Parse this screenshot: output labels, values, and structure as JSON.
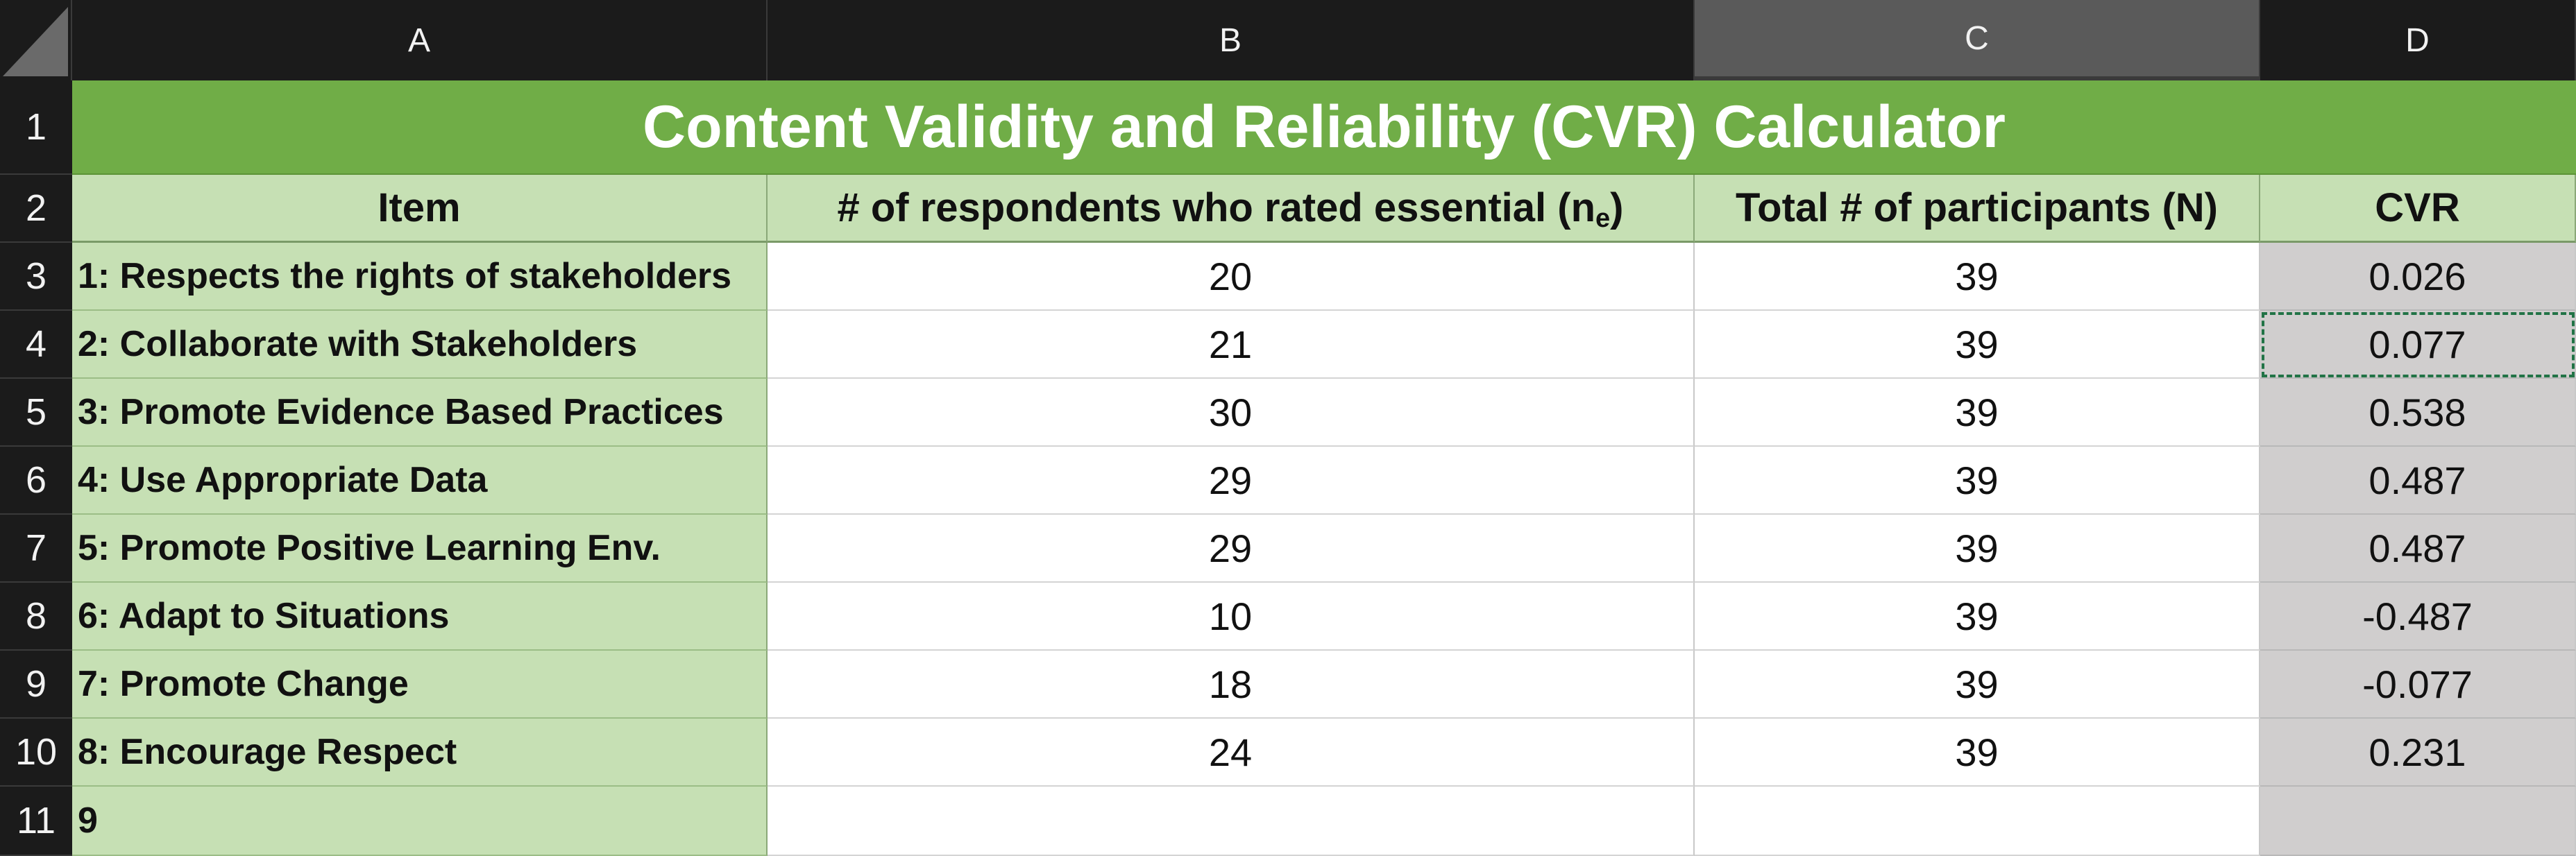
{
  "columns": [
    "A",
    "B",
    "C",
    "D"
  ],
  "rows": [
    "1",
    "2",
    "3",
    "4",
    "5",
    "6",
    "7",
    "8",
    "9",
    "10",
    "11"
  ],
  "active_column": "C",
  "selected_cell": "D4",
  "title": "Content Validity and Reliability (CVR) Calculator",
  "headers": {
    "item": "Item",
    "essential_main": "# of respondents who rated essential (n",
    "essential_sub": "e",
    "essential_close": ")",
    "participants": "Total # of participants (N)",
    "cvr": "CVR"
  },
  "items": [
    {
      "label": "1: Respects the rights of stakeholders",
      "essential": "20",
      "total": "39",
      "cvr": "0.026"
    },
    {
      "label": "2: Collaborate with Stakeholders",
      "essential": "21",
      "total": "39",
      "cvr": "0.077"
    },
    {
      "label": "3: Promote Evidence Based Practices",
      "essential": "30",
      "total": "39",
      "cvr": "0.538"
    },
    {
      "label": "4: Use Appropriate Data",
      "essential": "29",
      "total": "39",
      "cvr": "0.487"
    },
    {
      "label": "5: Promote Positive Learning Env.",
      "essential": "29",
      "total": "39",
      "cvr": "0.487"
    },
    {
      "label": "6: Adapt to Situations",
      "essential": "10",
      "total": "39",
      "cvr": "-0.487"
    },
    {
      "label": "7: Promote Change",
      "essential": "18",
      "total": "39",
      "cvr": "-0.077"
    },
    {
      "label": "8: Encourage Respect",
      "essential": "24",
      "total": "39",
      "cvr": "0.231"
    },
    {
      "label": "9",
      "essential": "",
      "total": "",
      "cvr": ""
    }
  ],
  "colors": {
    "title_green": "#70ad47",
    "item_green": "#c6e0b4",
    "cvr_gray": "#d0cece",
    "chrome_dark": "#1b1b1b"
  }
}
